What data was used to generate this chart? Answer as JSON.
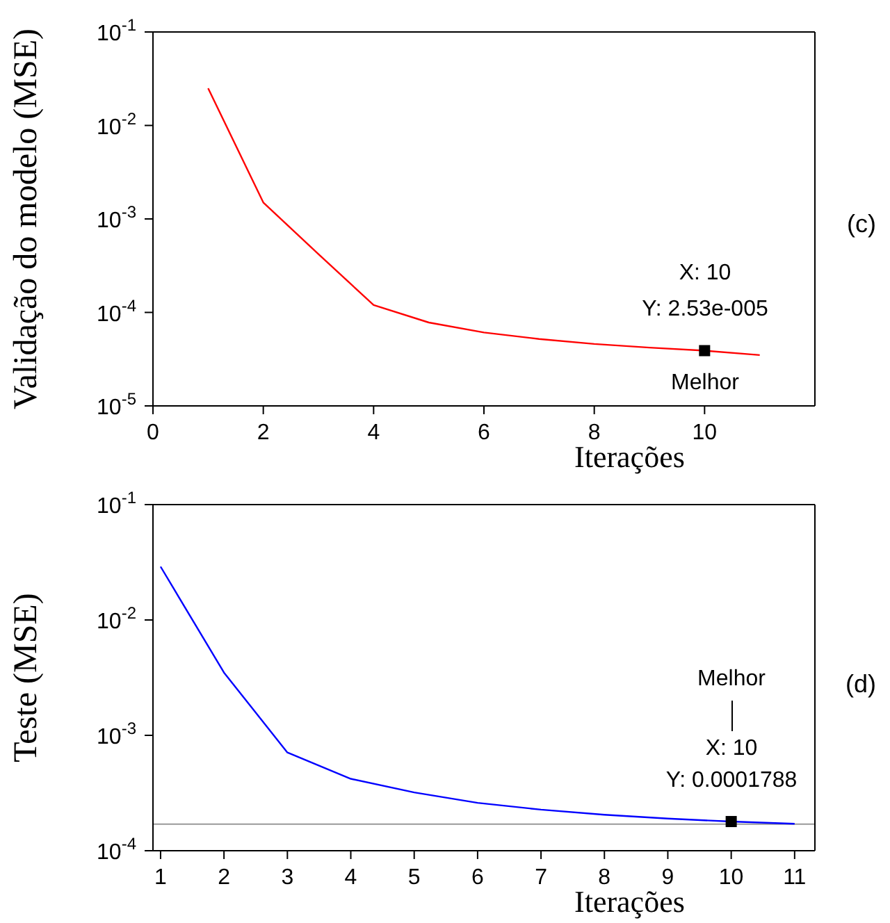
{
  "chart_data": [
    {
      "type": "line",
      "xlabel": "Iterações",
      "ylabel": "Validação do modelo (MSE)",
      "log": "y",
      "xlim": [
        0,
        12
      ],
      "xticks": [
        0,
        2,
        4,
        6,
        8,
        10
      ],
      "ylim": [
        1e-05,
        0.1
      ],
      "yticks": [
        {
          "value": 1e-05,
          "label": "10$^{-5}$"
        },
        {
          "value": 0.0001,
          "label": "10$^{-4}$"
        },
        {
          "value": 0.001,
          "label": "10$^{-3}$"
        },
        {
          "value": 0.01,
          "label": "10$^{-2}$"
        },
        {
          "value": 0.1,
          "label": "10$^{-1}$"
        }
      ],
      "series": [
        {
          "color": "#ff0000",
          "line_style": "solid",
          "x": [
            1,
            2,
            3,
            4,
            5,
            6,
            7,
            8,
            9,
            10,
            11
          ],
          "values": [
            0.025,
            0.0015,
            0.00042,
            0.00012,
            7.8e-05,
            6.1e-05,
            5.2e-05,
            4.6e-05,
            4.2e-05,
            3.9e-05,
            3.5e-05
          ]
        },
        {
          "type": "scatter",
          "color": "#000000",
          "marker": "square",
          "x": [
            10
          ],
          "values": [
            3.9e-05
          ]
        }
      ],
      "annotations": [
        "X: 10",
        "Y: 2.53e-005",
        "Melhor",
        "(c)"
      ]
    },
    {
      "type": "line",
      "xlabel": "Iterações",
      "ylabel": "Teste (MSE)",
      "log": "y",
      "xlim": [
        0.88,
        11.32
      ],
      "xticks": [
        1,
        2,
        3,
        4,
        5,
        6,
        7,
        8,
        9,
        10,
        11
      ],
      "ylim": [
        0.0001,
        0.1
      ],
      "yticks": [
        {
          "value": 0.0001,
          "label": "10$^{-4}$"
        },
        {
          "value": 0.001,
          "label": "10$^{-3}$"
        },
        {
          "value": 0.01,
          "label": "10$^{-2}$"
        },
        {
          "value": 0.1,
          "label": "10$^{-1}$"
        }
      ],
      "series": [
        {
          "color": "#0000ff",
          "line_style": "solid",
          "x": [
            1,
            2,
            3,
            4,
            5,
            6,
            7,
            8,
            9,
            10,
            11
          ],
          "values": [
            0.029,
            0.0035,
            0.00071,
            0.00042,
            0.00032,
            0.00026,
            0.000227,
            0.000205,
            0.00019,
            0.000179,
            0.000171
          ]
        },
        {
          "type": "scatter",
          "color": "#000000",
          "marker": "square",
          "x": [
            10
          ],
          "values": [
            0.000179
          ]
        }
      ],
      "ref_lines": [
        {
          "axis": "y",
          "value": 0.00017,
          "color": "#999999"
        }
      ],
      "annotations": [
        "Melhor",
        "X: 10",
        "Y: 0.0001788",
        "(d)"
      ]
    }
  ]
}
